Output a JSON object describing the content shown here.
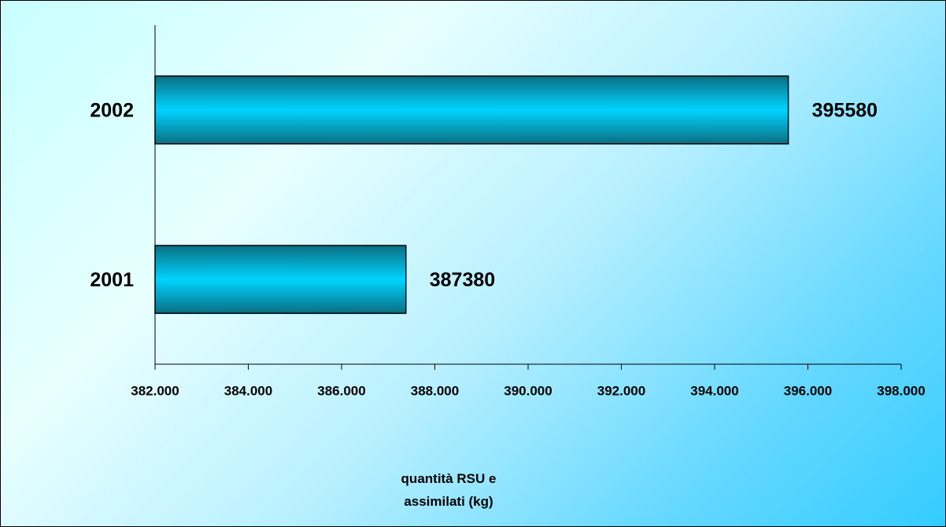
{
  "chart_data": {
    "type": "hbar",
    "categories": [
      "2001",
      "2002"
    ],
    "values": [
      387380,
      395580
    ],
    "color": "#00ccff",
    "xlim": [
      382000,
      398000
    ],
    "xticks": [
      {
        "value": 382000,
        "label": "382.000"
      },
      {
        "value": 384000,
        "label": "384.000"
      },
      {
        "value": 386000,
        "label": "386.000"
      },
      {
        "value": 388000,
        "label": "388.000"
      },
      {
        "value": 390000,
        "label": "390.000"
      },
      {
        "value": 392000,
        "label": "392.000"
      },
      {
        "value": 394000,
        "label": "394.000"
      },
      {
        "value": 396000,
        "label": "396.000"
      },
      {
        "value": 398000,
        "label": "398.000"
      }
    ],
    "x_label": "quantità RSU e assimilati (kg)"
  }
}
